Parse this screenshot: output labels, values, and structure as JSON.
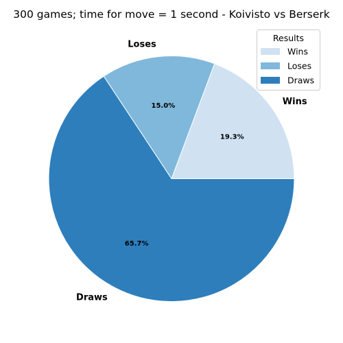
{
  "chart_data": {
    "type": "pie",
    "title": "300 games; time for move = 1 second - Koivisto vs Berserk",
    "categories": [
      "Wins",
      "Loses",
      "Draws"
    ],
    "values": [
      19.3,
      15.0,
      65.7
    ],
    "percent_labels": [
      "19.3%",
      "15.0%",
      "65.7%"
    ],
    "colors": [
      "#d0e1f2",
      "#7fb8da",
      "#2e7ebc"
    ],
    "start_angle_deg": 0,
    "direction": "counterclockwise",
    "legend": {
      "title": "Results",
      "placement": "top-right",
      "entries": [
        "Wins",
        "Loses",
        "Draws"
      ]
    }
  }
}
